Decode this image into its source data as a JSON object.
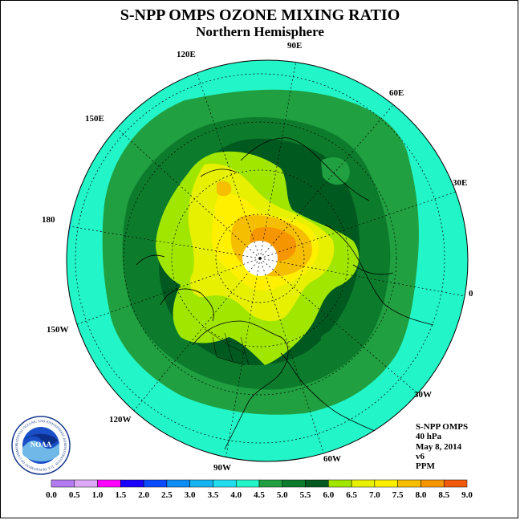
{
  "header": {
    "title": "S-NPP OMPS OZONE MIXING RATIO",
    "subtitle": "Northern Hemisphere"
  },
  "map": {
    "projection": "polar stereographic, north pole",
    "longitude_labels": [
      "90E",
      "60E",
      "30E",
      "0",
      "30W",
      "60W",
      "90W",
      "120W",
      "150W",
      "180",
      "150E",
      "120E"
    ]
  },
  "info": {
    "instrument": "S-NPP OMPS",
    "level": "40 hPa",
    "date": "May 8, 2014",
    "version": "v6",
    "units": "PPM"
  },
  "colorbar": {
    "ticks": [
      "0.0",
      "0.5",
      "1.0",
      "1.5",
      "2.0",
      "2.5",
      "3.0",
      "3.5",
      "4.0",
      "4.5",
      "5.0",
      "5.5",
      "6.0",
      "6.5",
      "7.0",
      "7.5",
      "8.0",
      "8.5",
      "9.0"
    ],
    "colors": [
      "#b27bf0",
      "#dcaaf5",
      "#ff00ff",
      "#1a00ff",
      "#0a4bff",
      "#0c8cf5",
      "#14b4f0",
      "#22dcf0",
      "#22f5c8",
      "#20a040",
      "#0c7c2c",
      "#005a20",
      "#a0e600",
      "#e6f000",
      "#fff000",
      "#f5be00",
      "#f59600",
      "#f05a0a",
      "#eb0000",
      "#8c5a3c"
    ]
  },
  "logo": {
    "text": "NOAA",
    "ring_text": "NATIONAL OCEANIC AND ATMOSPHERIC ADMINISTRATION · U.S. DEPARTMENT OF COMMERCE"
  }
}
